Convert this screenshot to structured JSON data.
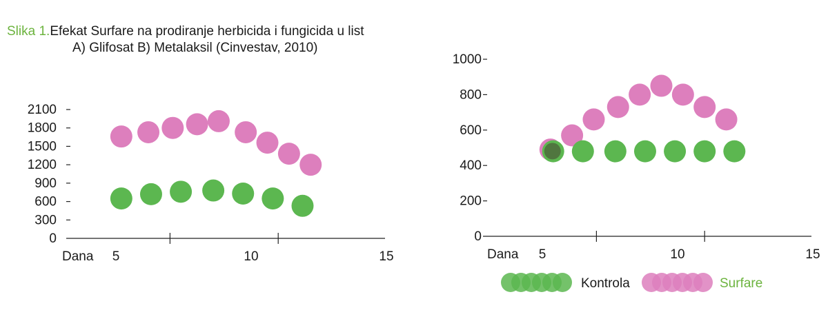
{
  "caption": {
    "lead": "Slika 1.",
    "line1": "Efekat Surfare  na prodiranje herbicida i fungicida u list",
    "line2": "A) Glifosat B) Metalaksil (Cinvestav, 2010)"
  },
  "colors": {
    "kontrola": "#5cb750",
    "surfare": "#dd7fbd",
    "overlap": "#4d6b3c",
    "legend_surfare_text": "#6cb33e",
    "axis": "#222222"
  },
  "legend": {
    "kontrola": "Kontrola",
    "surfare": "Surfare"
  },
  "chart_data": [
    {
      "type": "scatter",
      "title": "",
      "xlabel": "Dana",
      "ylabel": "",
      "xlim": [
        3,
        15
      ],
      "ylim": [
        0,
        2100
      ],
      "x_ticks": [
        5,
        10,
        15
      ],
      "x_tick_marks": [
        7,
        11
      ],
      "y_ticks": [
        0,
        300,
        600,
        900,
        1200,
        1500,
        1800,
        2100
      ],
      "series": [
        {
          "name": "Surfare",
          "x": [
            5.2,
            6.2,
            7.1,
            8.0,
            8.8,
            9.8,
            10.6,
            11.4,
            12.2
          ],
          "y": [
            1660,
            1730,
            1800,
            1860,
            1910,
            1730,
            1560,
            1380,
            1200
          ]
        },
        {
          "name": "Kontrola",
          "x": [
            5.2,
            6.3,
            7.4,
            8.6,
            9.7,
            10.8,
            11.9
          ],
          "y": [
            650,
            720,
            760,
            780,
            730,
            650,
            530
          ]
        }
      ]
    },
    {
      "type": "scatter",
      "title": "",
      "xlabel": "Dana",
      "ylabel": "",
      "xlim": [
        3,
        15
      ],
      "ylim": [
        0,
        1000
      ],
      "x_ticks": [
        5,
        10,
        15
      ],
      "x_tick_marks": [
        7,
        11
      ],
      "y_ticks": [
        0,
        200,
        400,
        600,
        800,
        1000
      ],
      "series": [
        {
          "name": "Surfare",
          "x": [
            5.3,
            6.1,
            6.9,
            7.8,
            8.6,
            9.4,
            10.2,
            11.0,
            11.8
          ],
          "y": [
            490,
            570,
            660,
            730,
            800,
            850,
            800,
            730,
            660
          ]
        },
        {
          "name": "Kontrola",
          "x": [
            5.4,
            6.5,
            7.7,
            8.8,
            9.9,
            11.0,
            12.1
          ],
          "y": [
            480,
            480,
            480,
            480,
            480,
            480,
            480
          ]
        }
      ]
    }
  ]
}
